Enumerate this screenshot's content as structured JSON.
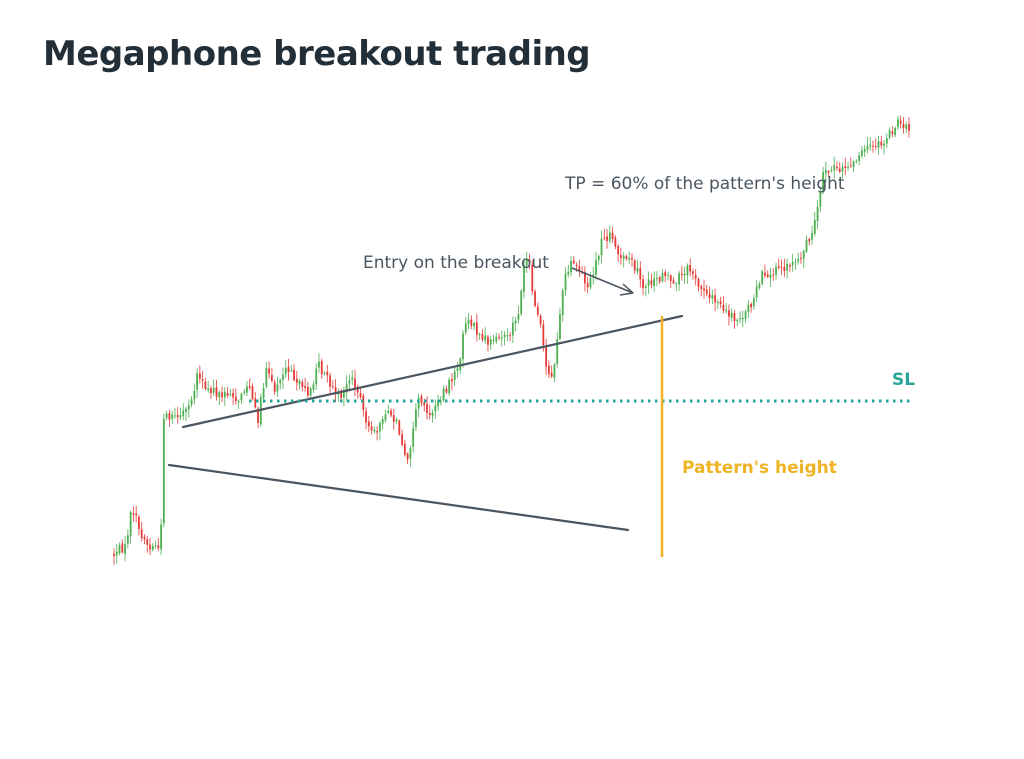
{
  "title": "Megaphone breakout trading",
  "colors": {
    "bull": "#4caf50",
    "bear": "#e53935",
    "trendline": "#4a5560",
    "sl": "#26a69a",
    "pattern_height": "#f0b323",
    "text": "#4a5560",
    "title": "#232f38"
  },
  "chart_data": {
    "type": "candlestick",
    "title": "Megaphone breakout trading",
    "xlabel": "",
    "ylabel": "",
    "grid": false,
    "axes_visible": false,
    "annotations": {
      "tp": "TP = 60% of the pattern's height",
      "entry": "Entry on the breakout",
      "sl": "SL",
      "pattern_height": "Pattern's height"
    },
    "anchors": [
      [
        0,
        18
      ],
      [
        4,
        22
      ],
      [
        6,
        37
      ],
      [
        7,
        40
      ],
      [
        10,
        27
      ],
      [
        13,
        21
      ],
      [
        16,
        23
      ],
      [
        17,
        31
      ],
      [
        18,
        87
      ],
      [
        24,
        89
      ],
      [
        28,
        93
      ],
      [
        30,
        107
      ],
      [
        34,
        100
      ],
      [
        40,
        97
      ],
      [
        45,
        96
      ],
      [
        49,
        103
      ],
      [
        52,
        86
      ],
      [
        55,
        110
      ],
      [
        58,
        100
      ],
      [
        62,
        110
      ],
      [
        67,
        105
      ],
      [
        70,
        97
      ],
      [
        74,
        112
      ],
      [
        79,
        102
      ],
      [
        82,
        98
      ],
      [
        86,
        106
      ],
      [
        91,
        86
      ],
      [
        95,
        77
      ],
      [
        98,
        90
      ],
      [
        102,
        85
      ],
      [
        106,
        64
      ],
      [
        110,
        98
      ],
      [
        113,
        88
      ],
      [
        117,
        93
      ],
      [
        121,
        104
      ],
      [
        124,
        110
      ],
      [
        127,
        134
      ],
      [
        131,
        130
      ],
      [
        135,
        124
      ],
      [
        139,
        126
      ],
      [
        143,
        130
      ],
      [
        146,
        137
      ],
      [
        148,
        163
      ],
      [
        150,
        164
      ],
      [
        151,
        148
      ],
      [
        154,
        133
      ],
      [
        156,
        113
      ],
      [
        158,
        106
      ],
      [
        160,
        124
      ],
      [
        162,
        152
      ],
      [
        165,
        166
      ],
      [
        168,
        160
      ],
      [
        171,
        152
      ],
      [
        174,
        164
      ],
      [
        176,
        175
      ],
      [
        179,
        177
      ],
      [
        182,
        168
      ],
      [
        184,
        168
      ],
      [
        188,
        162
      ],
      [
        191,
        153
      ],
      [
        195,
        154
      ],
      [
        199,
        157
      ],
      [
        203,
        155
      ],
      [
        207,
        160
      ],
      [
        212,
        151
      ],
      [
        217,
        144
      ],
      [
        222,
        137
      ],
      [
        226,
        134
      ],
      [
        230,
        143
      ],
      [
        234,
        159
      ],
      [
        238,
        159
      ],
      [
        242,
        160
      ],
      [
        248,
        166
      ],
      [
        252,
        179
      ],
      [
        256,
        209
      ],
      [
        260,
        210
      ],
      [
        265,
        212
      ],
      [
        270,
        218
      ],
      [
        274,
        223
      ],
      [
        278,
        224
      ],
      [
        283,
        234
      ],
      [
        287,
        230
      ]
    ]
  }
}
